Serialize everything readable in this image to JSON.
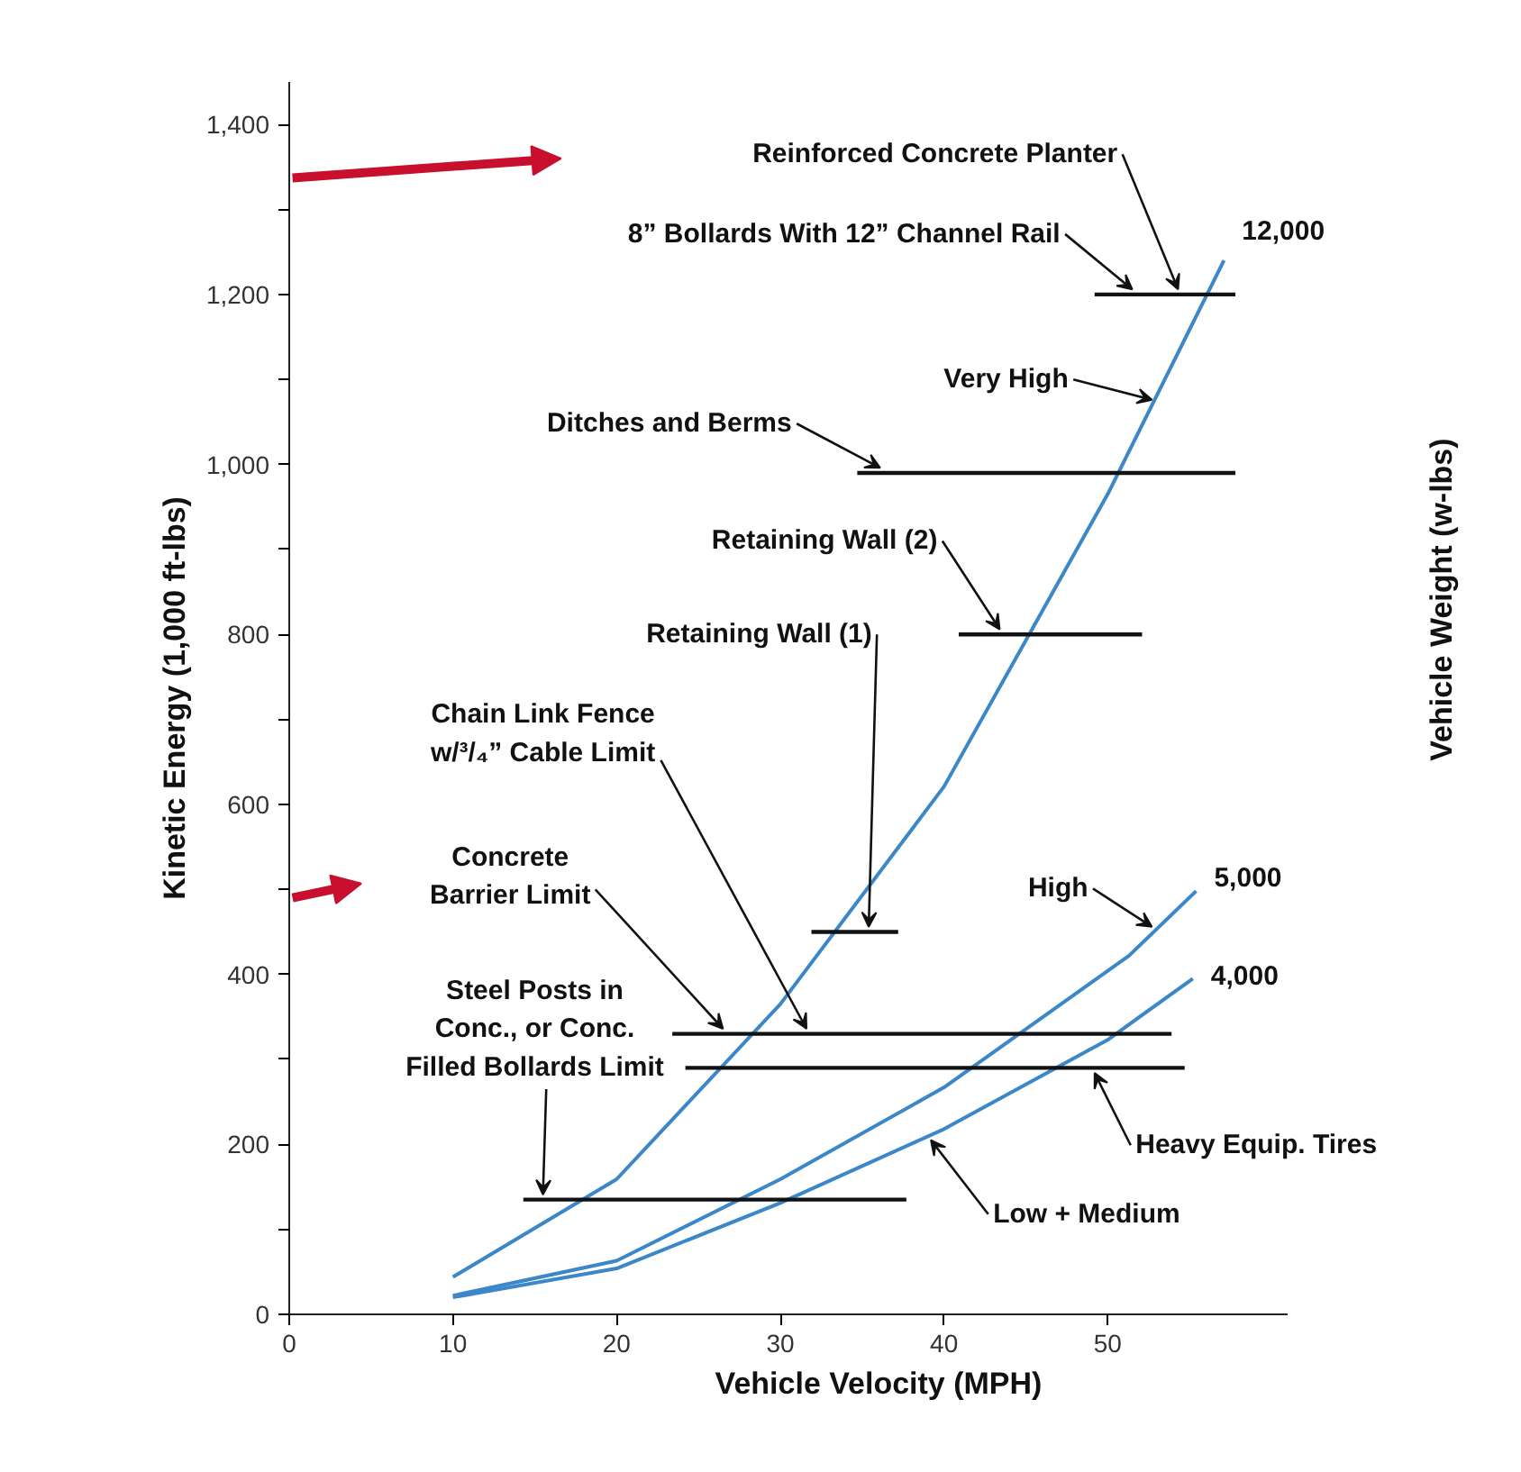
{
  "chart_data": {
    "type": "line",
    "xlabel": "Vehicle Velocity (MPH)",
    "ylabel": "Kinetic Energy (1,000 ft-lbs)",
    "xlim": [
      0,
      61
    ],
    "xticks": [
      0,
      10,
      20,
      30,
      40,
      50
    ],
    "ylim": [
      0,
      1450
    ],
    "yticks": [
      0,
      {
        "value": 100,
        "label": null
      },
      200,
      {
        "value": 300,
        "label": null
      },
      400,
      {
        "value": 500,
        "label": null
      },
      600,
      {
        "value": 700,
        "label": null
      },
      800,
      {
        "value": 900,
        "label": null
      },
      {
        "value": 1000,
        "label": "1,000"
      },
      {
        "value": 1100,
        "label": null
      },
      {
        "value": 1200,
        "label": "1,200"
      },
      {
        "value": 1300,
        "label": null
      },
      {
        "value": 1400,
        "label": "1,400"
      }
    ],
    "grid": false,
    "marker": "none",
    "line_style": "solid",
    "series": [
      {
        "name": "12,000",
        "color": "#3b87c8",
        "x": [
          10,
          20,
          30,
          40,
          50,
          57.1
        ],
        "values": [
          44,
          159,
          365,
          621,
          965,
          1240
        ]
      },
      {
        "name": "5,000",
        "color": "#3b87c8",
        "x": [
          10,
          20,
          30,
          40,
          51.3,
          55.4
        ],
        "values": [
          22,
          63,
          159,
          267,
          422,
          498
        ]
      },
      {
        "name": "4,000",
        "color": "#3b87c8",
        "x": [
          10,
          20,
          30,
          40,
          50,
          55.2
        ],
        "values": [
          20,
          54,
          131,
          218,
          323,
          395
        ]
      },
      {
        "color": "#111111",
        "x": [
          49.2,
          57.8
        ],
        "values": [
          1200,
          1200
        ]
      },
      {
        "color": "#111111",
        "x": [
          34.7,
          57.8
        ],
        "values": [
          990,
          990
        ]
      },
      {
        "color": "#111111",
        "x": [
          40.9,
          52.1
        ],
        "values": [
          800,
          800
        ]
      },
      {
        "color": "#111111",
        "x": [
          31.9,
          37.2
        ],
        "values": [
          450,
          450
        ]
      },
      {
        "color": "#111111",
        "x": [
          23.4,
          53.9
        ],
        "values": [
          330,
          330
        ]
      },
      {
        "color": "#111111",
        "x": [
          24.2,
          54.7
        ],
        "values": [
          290,
          290
        ]
      },
      {
        "color": "#111111",
        "x": [
          14.3,
          37.7
        ],
        "values": [
          135,
          135
        ]
      }
    ],
    "annotations": [
      {
        "text": "Reinforced Concrete Planter",
        "x": 54.3,
        "y": 1200
      },
      {
        "text": "8” Bollards With 12” Channel Rail",
        "x": 51.5,
        "y": 1200
      },
      {
        "text": "Very High",
        "x": 52.7,
        "y": 1070
      },
      {
        "text": "Ditches and Berms",
        "x": 36.1,
        "y": 990
      },
      {
        "text": "Retaining Wall (2)",
        "x": 43.4,
        "y": 800
      },
      {
        "text": "Retaining Wall (1)",
        "x": 35.4,
        "y": 450
      },
      {
        "text": "Chain Link Fence\nw/³/₄” Cable Limit",
        "x": 31.6,
        "y": 330
      },
      {
        "text": "Concrete\nBarrier Limit",
        "x": 26.5,
        "y": 330
      },
      {
        "text": "Steel Posts in\nConc., or Conc.\nFilled Bollards Limit",
        "x": 15.5,
        "y": 135
      },
      {
        "text": "High",
        "x": 52.7,
        "y": 450
      },
      {
        "text": "Heavy Equip. Tires",
        "x": 49.2,
        "y": 290
      },
      {
        "text": "Low + Medium",
        "x": 39.2,
        "y": 211
      },
      "Vehicle Weight (w-lbs)"
    ]
  }
}
